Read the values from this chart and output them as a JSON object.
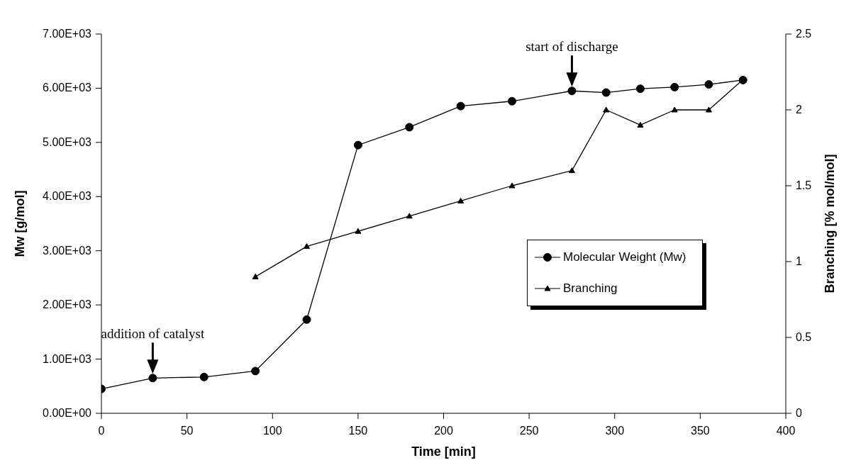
{
  "chart_data": {
    "type": "line",
    "xlabel": "Time [min]",
    "ylabel": "Mw [g/mol]",
    "y2label": "Branching [% mol/mol]",
    "xlim": [
      0,
      400
    ],
    "xticks": [
      0,
      50,
      100,
      150,
      200,
      250,
      300,
      350,
      400
    ],
    "ylim": [
      0,
      7000
    ],
    "yticks": [
      {
        "value": 0,
        "label": "0.00E+00"
      },
      {
        "value": 1000,
        "label": "1.00E+03"
      },
      {
        "value": 2000,
        "label": "2.00E+03"
      },
      {
        "value": 3000,
        "label": "3.00E+03"
      },
      {
        "value": 4000,
        "label": "4.00E+03"
      },
      {
        "value": 5000,
        "label": "5.00E+03"
      },
      {
        "value": 6000,
        "label": "6.00E+03"
      },
      {
        "value": 7000,
        "label": "7.00E+03"
      }
    ],
    "y2lim": [
      0,
      2.5
    ],
    "y2ticks": [
      0,
      0.5,
      1,
      1.5,
      2,
      2.5
    ],
    "grid": false,
    "legend": "right",
    "series": [
      {
        "name": "Molecular Weight (Mw)",
        "color": "#000000",
        "marker": "circle",
        "x": [
          0,
          30,
          60,
          90,
          120,
          150,
          180,
          210,
          240,
          275,
          295,
          315,
          335,
          355,
          375
        ],
        "values": [
          450,
          650,
          670,
          780,
          1730,
          4950,
          5280,
          5670,
          5760,
          5950,
          5920,
          5990,
          6020,
          6070,
          6150
        ]
      },
      {
        "name": "Branching",
        "color": "#000000",
        "marker": "triangle",
        "axis": "y2",
        "x": [
          90,
          120,
          150,
          180,
          210,
          240,
          275,
          295,
          315,
          335,
          355,
          375
        ],
        "values": [
          0.9,
          1.1,
          1.2,
          1.3,
          1.4,
          1.5,
          1.6,
          2.0,
          1.9,
          2.0,
          2.0,
          2.2
        ]
      }
    ],
    "annotations": [
      {
        "text": "addition of catalyst",
        "x": 30,
        "y": 650
      },
      {
        "text": "start of discharge",
        "x": 275,
        "y": 5950
      }
    ]
  }
}
